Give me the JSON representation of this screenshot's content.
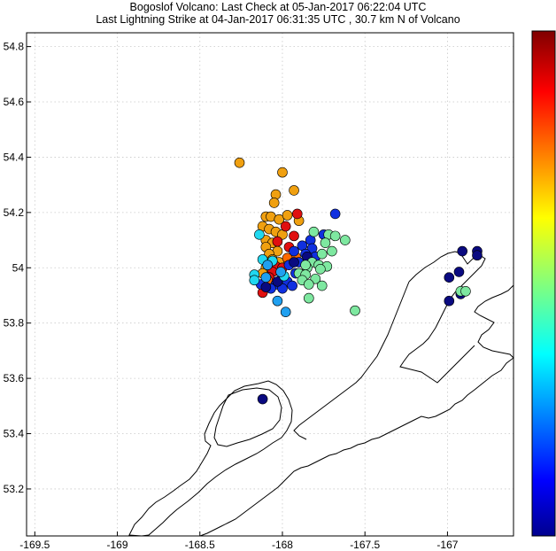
{
  "title_line1": "Bogoslof Volcano: Last Check at 05-Jan-2017 06:22:04 UTC",
  "title_line2": "Last Lightning Strike at 04-Jan-2017 06:31:35 UTC , 30.7 km N of Volcano",
  "chart_data": {
    "type": "scatter",
    "title": "Bogoslof Volcano: Last Check at 05-Jan-2017 06:22:04 UTC",
    "subtitle": "Last Lightning Strike at 04-Jan-2017 06:31:35 UTC , 30.7 km N of Volcano",
    "xlabel": "",
    "ylabel": "",
    "xlim": [
      -169.55,
      -166.6
    ],
    "ylim": [
      53.03,
      54.85
    ],
    "x_ticks": [
      -169.5,
      -169,
      -168.5,
      -168,
      -167.5,
      -167
    ],
    "x_tick_labels": [
      "-169.5",
      "-169",
      "-168.5",
      "-168",
      "-167.5",
      "-167"
    ],
    "y_ticks": [
      53.2,
      53.4,
      53.6,
      53.8,
      54,
      54.2,
      54.4,
      54.6,
      54.8
    ],
    "y_tick_labels": [
      "53.2",
      "53.4",
      "53.6",
      "53.8",
      "54",
      "54.2",
      "54.4",
      "54.6",
      "54.8"
    ],
    "grid": true,
    "colorbar": {
      "colormap": "jet",
      "position": "right",
      "tick_labels": []
    },
    "points": [
      {
        "x": -168.26,
        "y": 54.38,
        "color": "#f0a010"
      },
      {
        "x": -168.0,
        "y": 54.345,
        "color": "#f0a010"
      },
      {
        "x": -167.93,
        "y": 54.28,
        "color": "#f0a010"
      },
      {
        "x": -168.04,
        "y": 54.265,
        "color": "#f0a010"
      },
      {
        "x": -168.05,
        "y": 54.235,
        "color": "#f0a010"
      },
      {
        "x": -168.1,
        "y": 54.185,
        "color": "#f0a010"
      },
      {
        "x": -168.07,
        "y": 54.185,
        "color": "#f0a010"
      },
      {
        "x": -168.02,
        "y": 54.175,
        "color": "#f0a010"
      },
      {
        "x": -167.97,
        "y": 54.19,
        "color": "#f0a010"
      },
      {
        "x": -167.9,
        "y": 54.17,
        "color": "#f0a010"
      },
      {
        "x": -168.12,
        "y": 54.15,
        "color": "#f0a010"
      },
      {
        "x": -168.08,
        "y": 54.14,
        "color": "#f0a010"
      },
      {
        "x": -168.04,
        "y": 54.13,
        "color": "#f0a010"
      },
      {
        "x": -168.0,
        "y": 54.12,
        "color": "#f0a010"
      },
      {
        "x": -168.1,
        "y": 54.1,
        "color": "#f0a010"
      },
      {
        "x": -168.06,
        "y": 54.09,
        "color": "#f0a010"
      },
      {
        "x": -168.1,
        "y": 54.075,
        "color": "#f0a010"
      },
      {
        "x": -168.03,
        "y": 54.06,
        "color": "#f0a010"
      },
      {
        "x": -168.08,
        "y": 54.05,
        "color": "#f0a010"
      },
      {
        "x": -168.06,
        "y": 54.03,
        "color": "#f0a010"
      },
      {
        "x": -168.02,
        "y": 54.02,
        "color": "#f0a010"
      },
      {
        "x": -168.1,
        "y": 54.0,
        "color": "#f0a010"
      },
      {
        "x": -168.12,
        "y": 53.98,
        "color": "#f0a010"
      },
      {
        "x": -168.04,
        "y": 53.99,
        "color": "#f0a010"
      },
      {
        "x": -167.91,
        "y": 54.195,
        "color": "#e01010"
      },
      {
        "x": -167.98,
        "y": 54.15,
        "color": "#e01010"
      },
      {
        "x": -167.93,
        "y": 54.115,
        "color": "#e01010"
      },
      {
        "x": -168.03,
        "y": 54.095,
        "color": "#e01010"
      },
      {
        "x": -167.96,
        "y": 54.075,
        "color": "#e01010"
      },
      {
        "x": -168.04,
        "y": 54.005,
        "color": "#e01010"
      },
      {
        "x": -168.0,
        "y": 54.0,
        "color": "#e01010"
      },
      {
        "x": -168.06,
        "y": 53.985,
        "color": "#e01010"
      },
      {
        "x": -168.08,
        "y": 53.965,
        "color": "#e01010"
      },
      {
        "x": -168.12,
        "y": 53.91,
        "color": "#e01010"
      },
      {
        "x": -167.92,
        "y": 54.04,
        "color": "#ff6a00"
      },
      {
        "x": -167.97,
        "y": 54.035,
        "color": "#ff6a00"
      },
      {
        "x": -168.09,
        "y": 53.955,
        "color": "#ff6a00"
      },
      {
        "x": -167.68,
        "y": 54.195,
        "color": "#1030e0"
      },
      {
        "x": -167.75,
        "y": 54.12,
        "color": "#1030e0"
      },
      {
        "x": -167.83,
        "y": 54.1,
        "color": "#1030e0"
      },
      {
        "x": -167.88,
        "y": 54.08,
        "color": "#1030e0"
      },
      {
        "x": -167.82,
        "y": 54.07,
        "color": "#1030e0"
      },
      {
        "x": -167.93,
        "y": 54.06,
        "color": "#1030e0"
      },
      {
        "x": -167.86,
        "y": 54.05,
        "color": "#1030e0"
      },
      {
        "x": -167.9,
        "y": 54.02,
        "color": "#1030e0"
      },
      {
        "x": -167.96,
        "y": 54.01,
        "color": "#1030e0"
      },
      {
        "x": -167.92,
        "y": 53.98,
        "color": "#1030e0"
      },
      {
        "x": -168.0,
        "y": 53.97,
        "color": "#1030e0"
      },
      {
        "x": -167.97,
        "y": 53.95,
        "color": "#1030e0"
      },
      {
        "x": -167.94,
        "y": 53.935,
        "color": "#1030e0"
      },
      {
        "x": -168.04,
        "y": 53.94,
        "color": "#1030e0"
      },
      {
        "x": -168.13,
        "y": 53.94,
        "color": "#1030e0"
      },
      {
        "x": -168.07,
        "y": 53.925,
        "color": "#1030e0"
      },
      {
        "x": -168.0,
        "y": 53.925,
        "color": "#1030e0"
      },
      {
        "x": -167.8,
        "y": 54.04,
        "color": "#1030e0"
      },
      {
        "x": -168.12,
        "y": 53.525,
        "color": "#0a0a80"
      },
      {
        "x": -167.85,
        "y": 54.04,
        "color": "#0a0a80"
      },
      {
        "x": -167.93,
        "y": 54.02,
        "color": "#0a0a80"
      },
      {
        "x": -168.03,
        "y": 53.95,
        "color": "#0a0a80"
      },
      {
        "x": -168.1,
        "y": 53.93,
        "color": "#0a0a80"
      },
      {
        "x": -166.91,
        "y": 54.06,
        "color": "#0a0a80"
      },
      {
        "x": -166.82,
        "y": 54.06,
        "color": "#0a0a80"
      },
      {
        "x": -166.82,
        "y": 54.045,
        "color": "#0a0a80"
      },
      {
        "x": -166.93,
        "y": 53.985,
        "color": "#0a0a80"
      },
      {
        "x": -166.99,
        "y": 53.965,
        "color": "#0a0a80"
      },
      {
        "x": -166.92,
        "y": 53.905,
        "color": "#0a0a80"
      },
      {
        "x": -166.99,
        "y": 53.88,
        "color": "#0a0a80"
      },
      {
        "x": -168.14,
        "y": 54.12,
        "color": "#20d8f0"
      },
      {
        "x": -168.12,
        "y": 54.03,
        "color": "#20d8f0"
      },
      {
        "x": -168.17,
        "y": 53.975,
        "color": "#20d8f0"
      },
      {
        "x": -168.17,
        "y": 53.955,
        "color": "#20d8f0"
      },
      {
        "x": -168.06,
        "y": 54.025,
        "color": "#20d8f0"
      },
      {
        "x": -167.99,
        "y": 53.97,
        "color": "#20d8f0"
      },
      {
        "x": -168.09,
        "y": 54.01,
        "color": "#20a0f0"
      },
      {
        "x": -168.03,
        "y": 53.88,
        "color": "#20a0f0"
      },
      {
        "x": -167.98,
        "y": 53.84,
        "color": "#20a0f0"
      },
      {
        "x": -168.01,
        "y": 53.985,
        "color": "#20a0f0"
      },
      {
        "x": -168.1,
        "y": 53.965,
        "color": "#20a0f0"
      },
      {
        "x": -167.81,
        "y": 54.13,
        "color": "#7ee8a0"
      },
      {
        "x": -167.72,
        "y": 54.12,
        "color": "#7ee8a0"
      },
      {
        "x": -167.68,
        "y": 54.115,
        "color": "#7ee8a0"
      },
      {
        "x": -167.62,
        "y": 54.1,
        "color": "#7ee8a0"
      },
      {
        "x": -167.74,
        "y": 54.09,
        "color": "#7ee8a0"
      },
      {
        "x": -167.7,
        "y": 54.06,
        "color": "#7ee8a0"
      },
      {
        "x": -167.76,
        "y": 54.05,
        "color": "#7ee8a0"
      },
      {
        "x": -167.82,
        "y": 54.02,
        "color": "#7ee8a0"
      },
      {
        "x": -167.78,
        "y": 54.01,
        "color": "#7ee8a0"
      },
      {
        "x": -167.73,
        "y": 54.005,
        "color": "#7ee8a0"
      },
      {
        "x": -167.85,
        "y": 54.0,
        "color": "#7ee8a0"
      },
      {
        "x": -167.77,
        "y": 53.995,
        "color": "#7ee8a0"
      },
      {
        "x": -167.9,
        "y": 53.98,
        "color": "#7ee8a0"
      },
      {
        "x": -167.86,
        "y": 53.975,
        "color": "#7ee8a0"
      },
      {
        "x": -167.8,
        "y": 53.96,
        "color": "#7ee8a0"
      },
      {
        "x": -167.88,
        "y": 53.955,
        "color": "#7ee8a0"
      },
      {
        "x": -167.84,
        "y": 53.94,
        "color": "#7ee8a0"
      },
      {
        "x": -167.76,
        "y": 53.935,
        "color": "#7ee8a0"
      },
      {
        "x": -167.84,
        "y": 53.89,
        "color": "#7ee8a0"
      },
      {
        "x": -167.56,
        "y": 53.845,
        "color": "#7ee8a0"
      },
      {
        "x": -166.92,
        "y": 53.915,
        "color": "#7ee8a0"
      },
      {
        "x": -166.89,
        "y": 53.915,
        "color": "#7ee8a0"
      },
      {
        "x": -167.86,
        "y": 54.01,
        "color": "#7ee8a0"
      }
    ]
  }
}
